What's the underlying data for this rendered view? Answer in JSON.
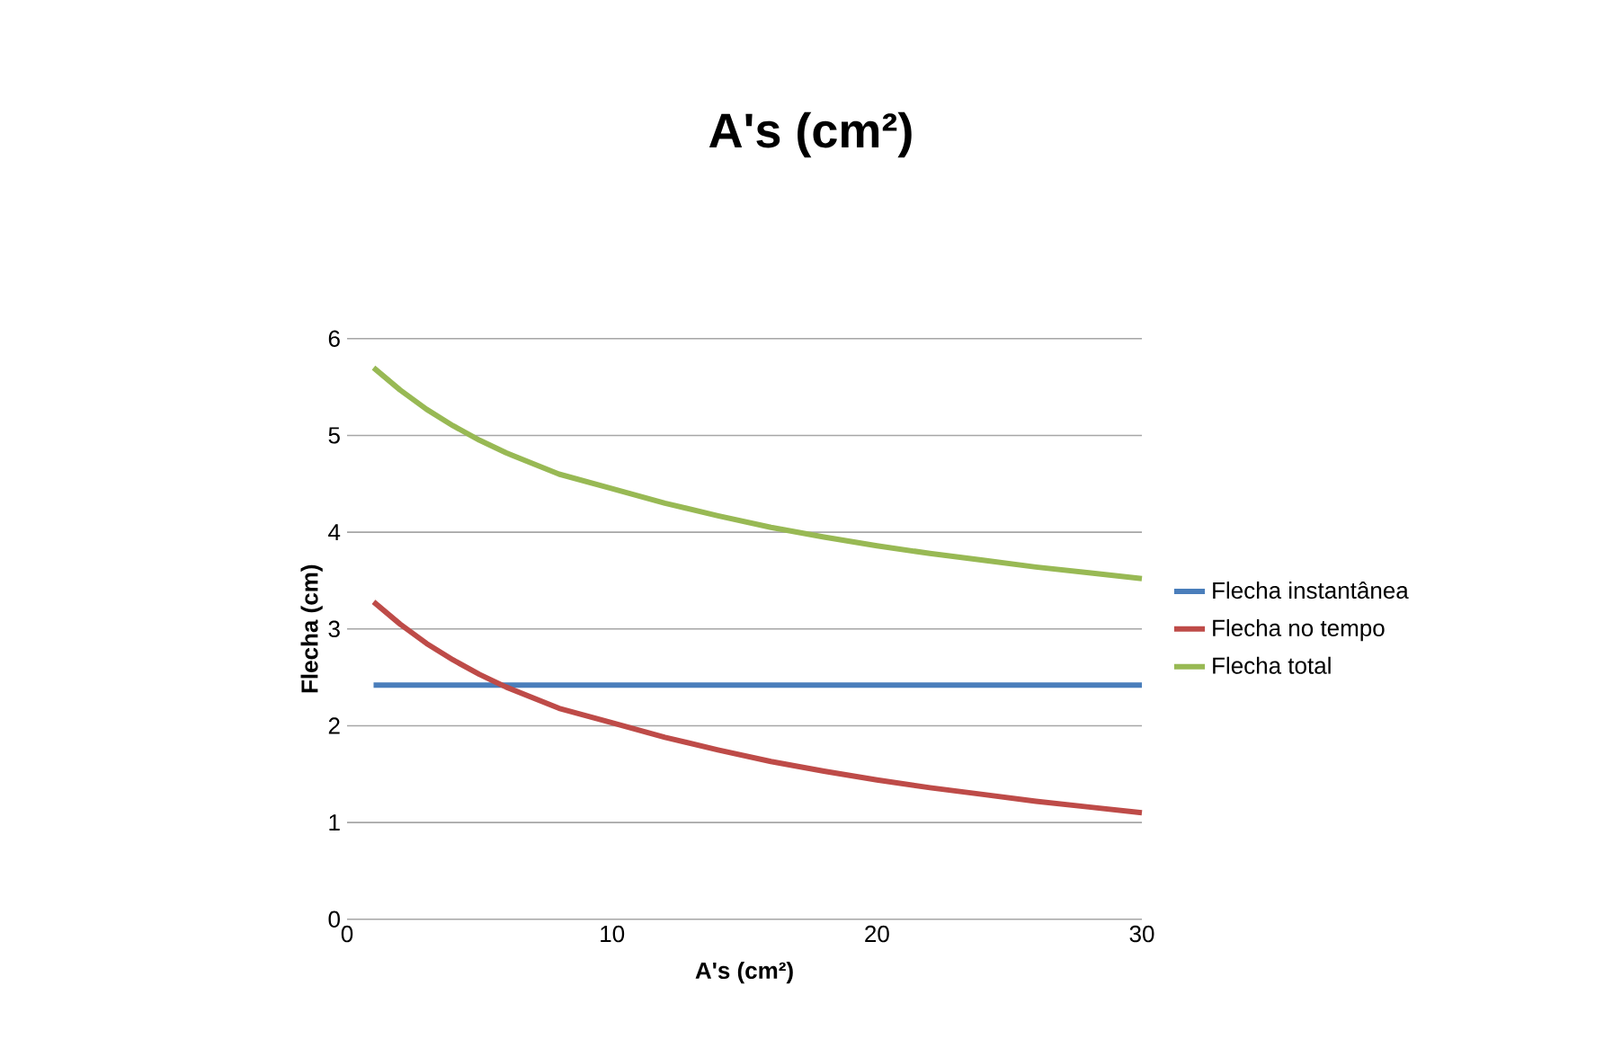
{
  "chart_data": {
    "type": "line",
    "title": "A's (cm²)",
    "xlabel": "A's (cm²)",
    "ylabel": "Flecha (cm)",
    "xlim": [
      0,
      30
    ],
    "ylim": [
      0,
      6
    ],
    "xticks": [
      0,
      10,
      20,
      30
    ],
    "yticks": [
      0,
      1,
      2,
      3,
      4,
      5,
      6
    ],
    "grid": "y",
    "legend": "right",
    "marker": "none",
    "line_style": "solid",
    "x": [
      1,
      2,
      3,
      4,
      5,
      6,
      8,
      10,
      12,
      14,
      16,
      18,
      20,
      22,
      24,
      26,
      28,
      30
    ],
    "series": [
      {
        "name": "Flecha instantânea",
        "color": "#4a7ebb",
        "values": [
          2.42,
          2.42,
          2.42,
          2.42,
          2.42,
          2.42,
          2.42,
          2.42,
          2.42,
          2.42,
          2.42,
          2.42,
          2.42,
          2.42,
          2.42,
          2.42,
          2.42,
          2.42
        ]
      },
      {
        "name": "Flecha no tempo",
        "color": "#be4b48",
        "values": [
          3.28,
          3.05,
          2.85,
          2.68,
          2.53,
          2.4,
          2.18,
          2.03,
          1.88,
          1.75,
          1.63,
          1.53,
          1.44,
          1.36,
          1.29,
          1.22,
          1.16,
          1.1
        ]
      },
      {
        "name": "Flecha total",
        "color": "#98b954",
        "values": [
          5.7,
          5.47,
          5.27,
          5.1,
          4.95,
          4.82,
          4.6,
          4.45,
          4.3,
          4.17,
          4.05,
          3.95,
          3.86,
          3.78,
          3.71,
          3.64,
          3.58,
          3.52
        ]
      }
    ]
  }
}
